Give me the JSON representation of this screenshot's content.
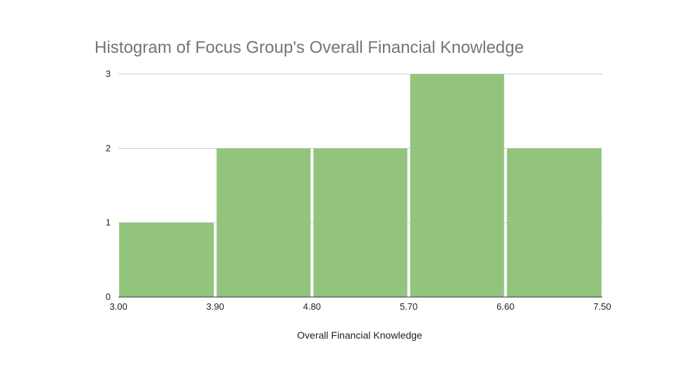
{
  "chart_data": {
    "type": "bar",
    "title": "Histogram of Focus Group's Overall Financial Knowledge",
    "xlabel": "Overall Financial Knowledge",
    "ylabel": "",
    "bin_edges": [
      "3.00",
      "3.90",
      "4.80",
      "5.70",
      "6.60",
      "7.50"
    ],
    "values": [
      1,
      2,
      2,
      3,
      2
    ],
    "ylim": [
      0,
      3
    ],
    "yticks": [
      "0",
      "1",
      "2",
      "3"
    ],
    "grid": true,
    "bar_color": "#93c47d"
  }
}
